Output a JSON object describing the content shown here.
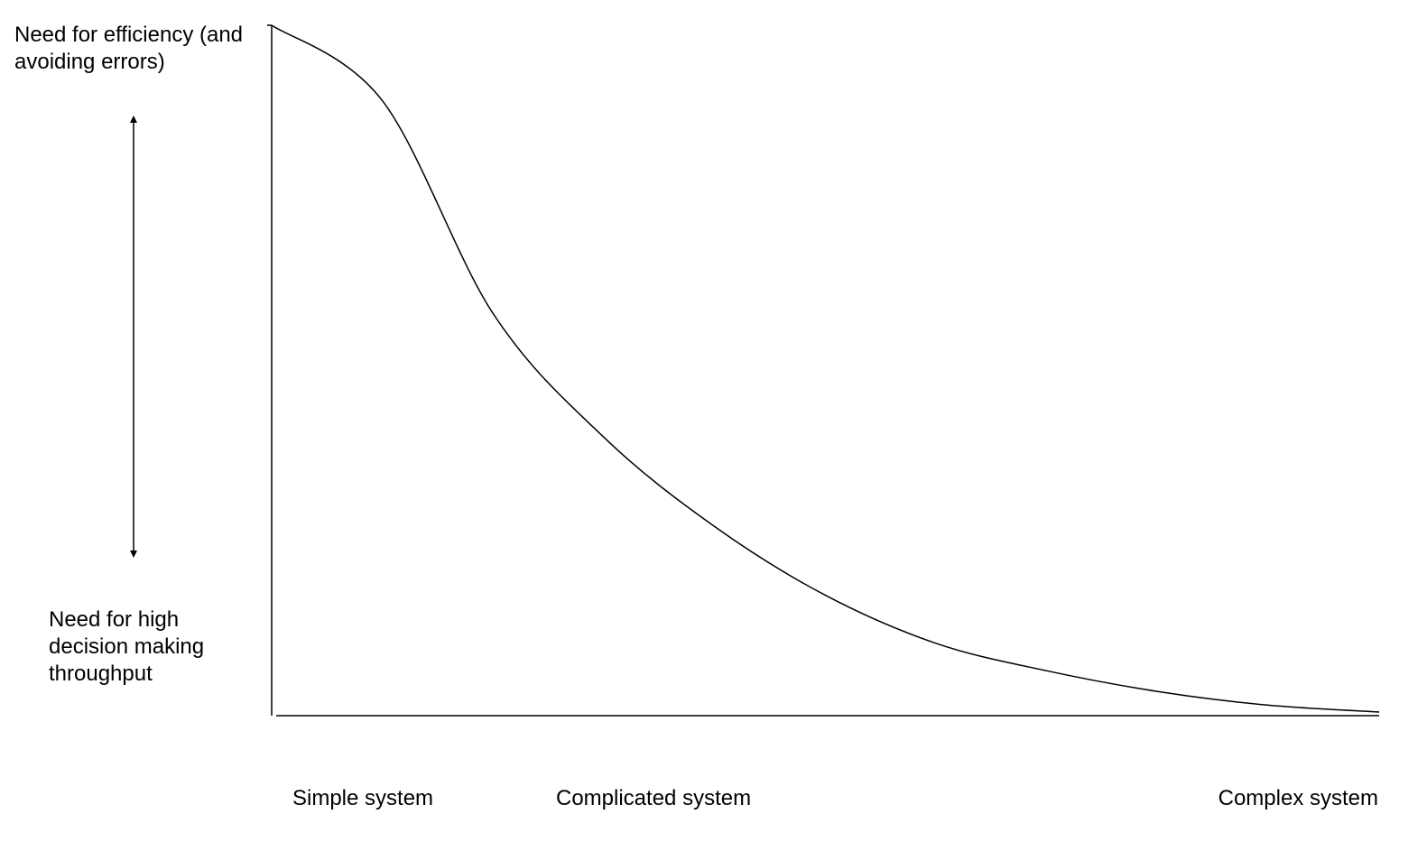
{
  "diagram": {
    "y_axis": {
      "top_label_lines": [
        "Need for efficiency (and",
        "avoiding errors)"
      ],
      "bottom_label_lines": [
        "Need for high",
        "decision making",
        "throughput"
      ]
    },
    "x_axis": {
      "categories": [
        "Simple system",
        "Complicated system",
        "Complex system"
      ]
    },
    "curve": {
      "shape": "decreasing s-curve",
      "description_points_0_to_1": [
        {
          "x": 0.0,
          "y": 1.0
        },
        {
          "x": 0.1,
          "y": 0.89
        },
        {
          "x": 0.2,
          "y": 0.58
        },
        {
          "x": 0.3,
          "y": 0.4
        },
        {
          "x": 0.4,
          "y": 0.27
        },
        {
          "x": 0.5,
          "y": 0.17
        },
        {
          "x": 0.6,
          "y": 0.1
        },
        {
          "x": 0.7,
          "y": 0.06
        },
        {
          "x": 0.8,
          "y": 0.03
        },
        {
          "x": 0.9,
          "y": 0.01
        },
        {
          "x": 1.0,
          "y": 0.0
        }
      ]
    },
    "colors": {
      "line": "#000000",
      "background": "#ffffff"
    }
  }
}
